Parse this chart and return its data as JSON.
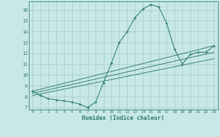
{
  "title": "",
  "xlabel": "Humidex (Indice chaleur)",
  "ylabel": "",
  "bg_color": "#c8e8e8",
  "line_color": "#2e7d6e",
  "grid_color": "#aacccc",
  "xlim": [
    -0.5,
    23.5
  ],
  "ylim": [
    6.8,
    16.8
  ],
  "xticks": [
    0,
    1,
    2,
    3,
    4,
    5,
    6,
    7,
    8,
    9,
    10,
    11,
    12,
    13,
    14,
    15,
    16,
    17,
    18,
    19,
    20,
    21,
    22,
    23
  ],
  "yticks": [
    7,
    8,
    9,
    10,
    11,
    12,
    13,
    14,
    15,
    16
  ],
  "main_curve_x": [
    0,
    1,
    2,
    3,
    4,
    5,
    6,
    7,
    8,
    9,
    10,
    11,
    12,
    13,
    14,
    15,
    16,
    17,
    18,
    19,
    20,
    21,
    22,
    23
  ],
  "main_curve_y": [
    8.5,
    8.1,
    7.8,
    7.7,
    7.6,
    7.5,
    7.3,
    7.0,
    7.5,
    9.3,
    11.1,
    13.0,
    14.0,
    15.3,
    16.1,
    16.5,
    16.3,
    14.8,
    12.4,
    11.0,
    11.9,
    12.1,
    12.1,
    12.7
  ],
  "line2_x": [
    0,
    23
  ],
  "line2_y": [
    8.5,
    12.7
  ],
  "line3_x": [
    0,
    23
  ],
  "line3_y": [
    8.3,
    12.1
  ],
  "line4_x": [
    0,
    23
  ],
  "line4_y": [
    8.1,
    11.5
  ]
}
